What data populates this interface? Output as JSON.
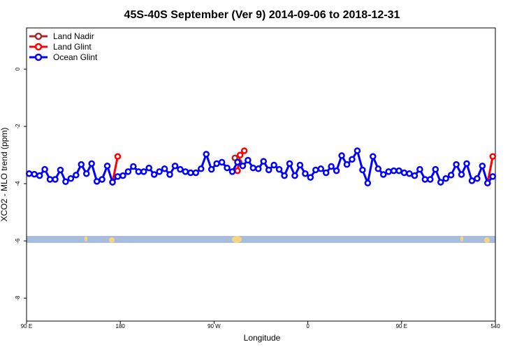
{
  "chart_data": {
    "type": "line",
    "title": "45S-40S September (Ver 9)   2014-09-06 to 2018-12-31",
    "x_label": "Longitude",
    "y_label": "XCO2 - MLO trend (ppm)",
    "xlim": [
      90,
      540
    ],
    "ylim": [
      -8.8,
      1.44
    ],
    "xticks": [
      {
        "value": 90,
        "label": "90 E"
      },
      180,
      {
        "value": 270,
        "label": "90 W"
      },
      {
        "value": 360,
        "label": "0"
      },
      {
        "value": 450,
        "label": "90 E"
      },
      540
    ],
    "yticks": [
      -8,
      -6,
      -4,
      -2,
      0
    ],
    "legend": "top-left",
    "series": [
      {
        "name": "Land Nadir",
        "color": "#a52a2a",
        "x": [
          290,
          294
        ],
        "values": [
          -3.1,
          -3.25
        ]
      },
      {
        "name": "Land Glint",
        "color": "#ff0000",
        "x": [
          172.5,
          177.5,
          185,
          292.5,
          295,
          299,
          400,
          532.5,
          537.5
        ],
        "values": [
          -3.95,
          -3.05,
          null,
          -3.55,
          -3.0,
          -2.85,
          null,
          -3.98,
          -3.05
        ]
      },
      {
        "name": "Ocean Glint",
        "color": "#0000ff",
        "x": [
          92.5,
          97.5,
          102.5,
          107.5,
          112.5,
          117.5,
          122.5,
          127.5,
          132.5,
          137.5,
          142.5,
          147.5,
          152.5,
          157.5,
          162.5,
          167.5,
          172.5,
          177.5,
          182.5,
          187.5,
          192.5,
          197.5,
          202.5,
          207.5,
          212.5,
          217.5,
          222.5,
          227.5,
          232.5,
          237.5,
          242.5,
          247.5,
          252.5,
          257.5,
          262.5,
          267.5,
          272.5,
          277.5,
          282.5,
          287.5,
          292.5,
          297.5,
          302.5,
          307.5,
          312.5,
          317.5,
          322.5,
          327.5,
          332.5,
          337.5,
          342.5,
          347.5,
          352.5,
          357.5,
          362.5,
          367.5,
          372.5,
          377.5,
          382.5,
          387.5,
          392.5,
          397.5,
          402.5,
          407.5,
          412.5,
          417.5,
          422.5,
          427.5,
          432.5,
          437.5,
          442.5,
          447.5,
          452.5,
          457.5,
          462.5,
          467.5,
          472.5,
          477.5,
          482.5,
          487.5,
          492.5,
          497.5,
          502.5,
          507.5,
          512.5,
          517.5,
          522.5,
          527.5,
          532.5,
          537.5
        ],
        "values": [
          -3.65,
          -3.67,
          -3.72,
          -3.5,
          -3.85,
          -3.85,
          -3.52,
          -3.93,
          -3.82,
          -3.7,
          -3.33,
          -3.65,
          -3.3,
          -3.92,
          -3.85,
          -3.38,
          -3.95,
          -3.75,
          -3.72,
          -3.58,
          -3.4,
          -3.58,
          -3.58,
          -3.45,
          -3.68,
          -3.58,
          -3.48,
          -3.68,
          -3.38,
          -3.5,
          -3.58,
          -3.62,
          -3.62,
          -3.48,
          -2.97,
          -3.5,
          -3.3,
          -3.25,
          -3.45,
          -3.58,
          -3.25,
          -3.38,
          -3.18,
          -3.45,
          -3.48,
          -3.22,
          -3.52,
          -3.35,
          -3.5,
          -3.72,
          -3.3,
          -3.72,
          -3.35,
          -3.65,
          -3.78,
          -3.52,
          -3.48,
          -3.62,
          -3.4,
          -3.55,
          -3.02,
          -3.33,
          -3.15,
          -2.85,
          -3.52,
          -3.98,
          -3.05,
          -3.48,
          -3.68,
          -3.58,
          -3.55,
          -3.55,
          -3.62,
          -3.65,
          -3.72,
          -3.5,
          -3.85,
          -3.85,
          -3.5,
          -3.95,
          -3.82,
          -3.7,
          -3.33,
          -3.68,
          -3.3,
          -3.9,
          -3.82,
          -3.38,
          -3.98,
          -3.75
        ]
      }
    ]
  }
}
